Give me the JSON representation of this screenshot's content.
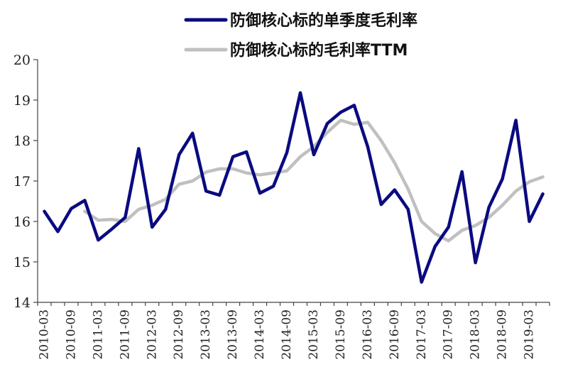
{
  "chart_data": {
    "type": "line",
    "title": "",
    "xlabel": "",
    "ylabel": "",
    "ylim": [
      14,
      20
    ],
    "yticks": [
      14,
      15,
      16,
      17,
      18,
      19,
      20
    ],
    "grid": false,
    "legend_position": "top",
    "x": [
      "2010-03",
      "2010-06",
      "2010-09",
      "2010-12",
      "2011-03",
      "2011-06",
      "2011-09",
      "2011-12",
      "2012-03",
      "2012-06",
      "2012-09",
      "2012-12",
      "2013-03",
      "2013-06",
      "2013-09",
      "2013-12",
      "2014-03",
      "2014-06",
      "2014-09",
      "2014-12",
      "2015-03",
      "2015-06",
      "2015-09",
      "2015-12",
      "2016-03",
      "2016-06",
      "2016-09",
      "2016-12",
      "2017-03",
      "2017-06",
      "2017-09",
      "2017-12",
      "2018-03",
      "2018-06",
      "2018-09",
      "2018-12",
      "2019-03",
      "2019-06"
    ],
    "xtick_labels": [
      "2010-03",
      "2010-09",
      "2011-03",
      "2011-09",
      "2012-03",
      "2012-09",
      "2013-03",
      "2013-09",
      "2014-03",
      "2014-09",
      "2015-03",
      "2015-09",
      "2016-03",
      "2016-09",
      "2017-03",
      "2017-09",
      "2018-03",
      "2018-09",
      "2019-03"
    ],
    "series": [
      {
        "name": "防御核心标的单季度毛利率",
        "color": "#0a0a80",
        "values": [
          16.25,
          15.75,
          16.32,
          16.52,
          15.54,
          15.81,
          16.1,
          17.8,
          15.86,
          16.3,
          17.65,
          18.18,
          16.75,
          16.65,
          17.6,
          17.72,
          16.7,
          16.87,
          17.7,
          19.18,
          17.65,
          18.42,
          18.7,
          18.87,
          17.85,
          16.42,
          16.78,
          16.3,
          14.5,
          15.38,
          15.86,
          17.23,
          14.98,
          16.35,
          17.05,
          18.5,
          16.0,
          16.68
        ]
      },
      {
        "name": "防御核心标的毛利率TTM",
        "color": "#c0c0c0",
        "values": [
          null,
          null,
          null,
          16.25,
          16.03,
          16.05,
          16.0,
          16.3,
          16.4,
          16.55,
          16.92,
          17.0,
          17.22,
          17.3,
          17.3,
          17.2,
          17.15,
          17.2,
          17.25,
          17.6,
          17.85,
          18.2,
          18.5,
          18.4,
          18.45,
          18.0,
          17.45,
          16.8,
          16.0,
          15.7,
          15.52,
          15.78,
          15.9,
          16.1,
          16.4,
          16.75,
          16.98,
          17.1
        ]
      }
    ]
  }
}
